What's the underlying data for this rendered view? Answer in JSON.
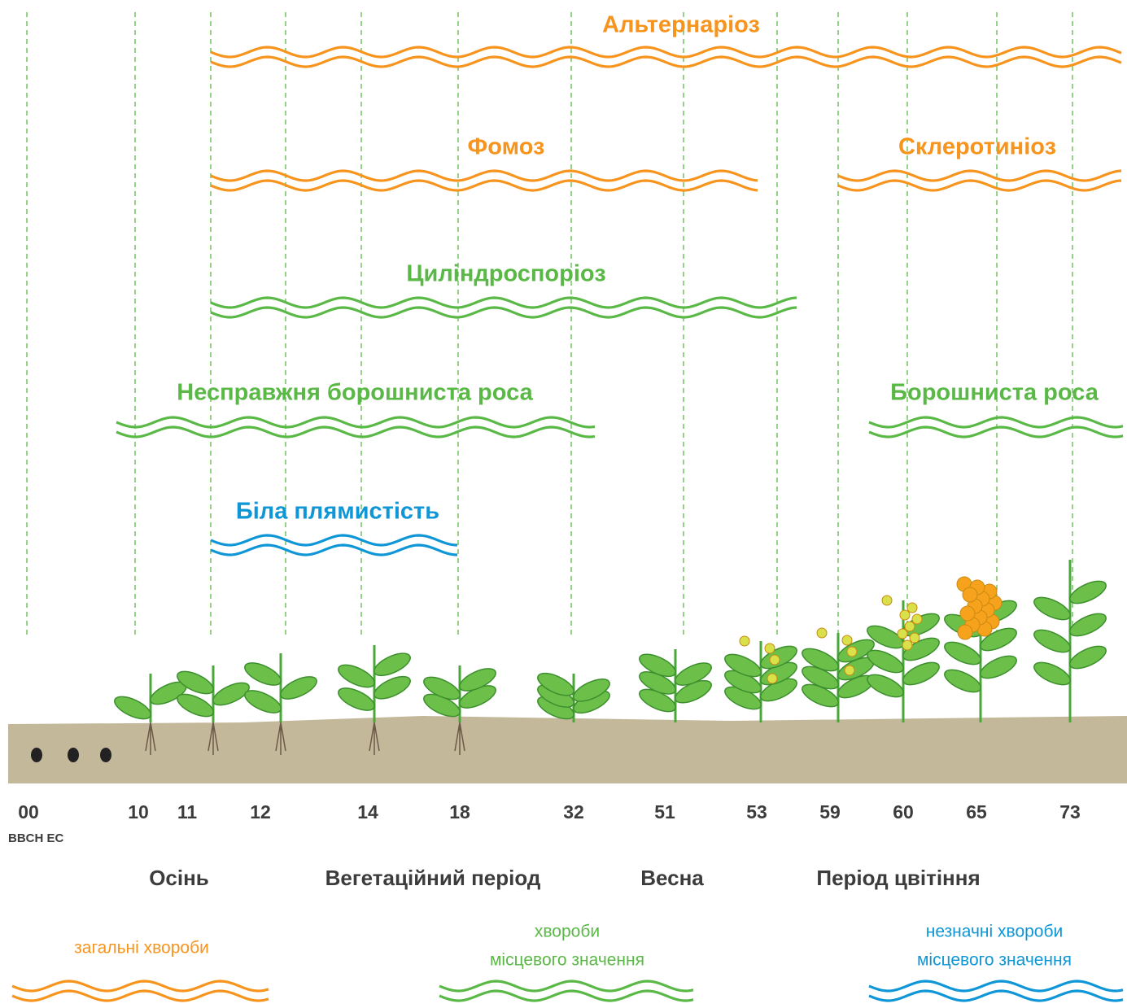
{
  "diseases": [
    {
      "name": "Альтернаріоз",
      "color": "#f7941d"
    },
    {
      "name": "Фомоз",
      "color": "#f7941d"
    },
    {
      "name": "Склеротиніоз",
      "color": "#f7941d"
    },
    {
      "name": "Циліндроспоріоз",
      "color": "#5ab946"
    },
    {
      "name": "Несправжня борошниста роса",
      "color": "#5ab946"
    },
    {
      "name": "Борошниста роса",
      "color": "#5ab946"
    },
    {
      "name": "Біла плямистість",
      "color": "#0f96d6"
    }
  ],
  "stages": {
    "label": "BBCH EC",
    "codes": [
      "00",
      "10",
      "11",
      "12",
      "14",
      "18",
      "32",
      "51",
      "53",
      "59",
      "60",
      "65",
      "73"
    ]
  },
  "periods": [
    "Осінь",
    "Вегетаційний період",
    "Весна",
    "Період цвітіння"
  ],
  "legend": [
    {
      "lines": [
        "загальні хвороби"
      ],
      "color": "#f7941d"
    },
    {
      "lines": [
        "хвороби",
        "місцевого значення"
      ],
      "color": "#5ab946"
    },
    {
      "lines": [
        "незначні хвороби",
        "місцевого значення"
      ],
      "color": "#0f96d6"
    }
  ]
}
